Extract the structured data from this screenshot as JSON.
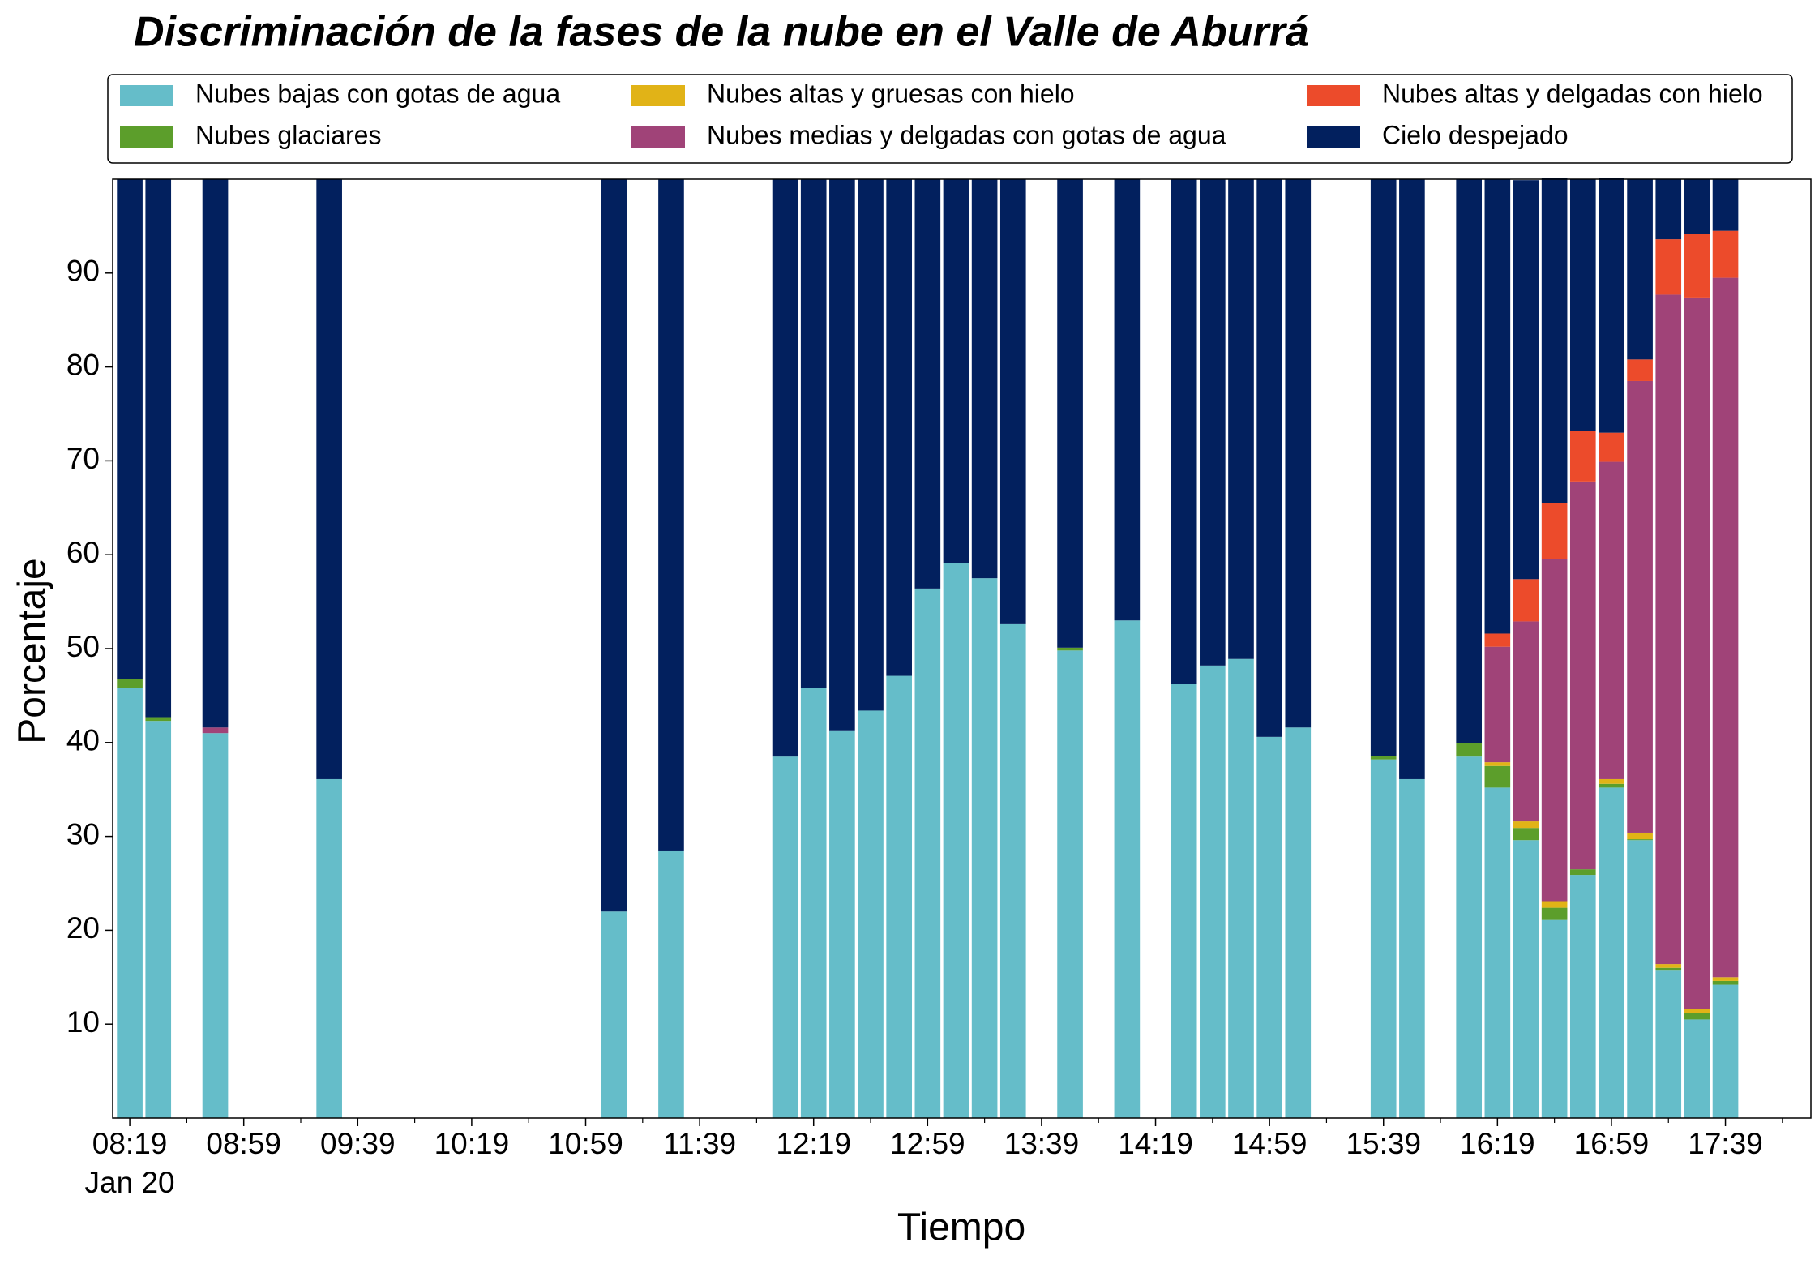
{
  "chart_data": {
    "type": "stacked_bar",
    "title": "Discriminación de la fases de la nube en el Valle de Aburrá",
    "xlabel": "Tiempo",
    "ylabel": "Porcentaje",
    "x": [
      "08:19",
      "08:29",
      "08:49",
      "09:29",
      "11:09",
      "11:29",
      "12:09",
      "12:19",
      "12:29",
      "12:39",
      "12:49",
      "12:59",
      "13:09",
      "13:19",
      "13:29",
      "13:49",
      "14:09",
      "14:29",
      "14:39",
      "14:49",
      "14:59",
      "15:09",
      "15:39",
      "15:49",
      "16:09",
      "16:19",
      "16:29",
      "16:39",
      "16:49",
      "16:59",
      "17:09",
      "17:19",
      "17:29",
      "17:39"
    ],
    "series": [
      {
        "name": "Nubes bajas con gotas de agua",
        "color": "#65bdc9",
        "values": [
          45.8,
          42.3,
          41.0,
          36.1,
          22.0,
          28.5,
          38.5,
          45.8,
          41.3,
          43.4,
          47.1,
          56.4,
          59.1,
          57.5,
          52.6,
          49.8,
          53.0,
          46.2,
          48.2,
          48.9,
          40.6,
          41.6,
          38.2,
          36.1,
          38.5,
          35.2,
          29.6,
          21.1,
          25.9,
          35.2,
          29.6,
          15.7,
          10.5,
          14.2
        ]
      },
      {
        "name": "Nubes glaciares",
        "color": "#5c9e2b",
        "values": [
          1.0,
          0.4,
          0,
          0,
          0,
          0,
          0,
          0,
          0,
          0,
          0,
          0,
          0,
          0,
          0,
          0.3,
          0,
          0,
          0,
          0,
          0,
          0,
          0.4,
          0,
          1.4,
          2.3,
          1.3,
          1.3,
          0.6,
          0.4,
          0.1,
          0.3,
          0.7,
          0.4
        ]
      },
      {
        "name": "Nubes altas y gruesas con hielo",
        "color": "#e1b317",
        "values": [
          0,
          0,
          0,
          0,
          0,
          0,
          0,
          0,
          0,
          0,
          0,
          0,
          0,
          0,
          0,
          0,
          0,
          0,
          0,
          0,
          0,
          0,
          0,
          0,
          0,
          0.4,
          0.7,
          0.7,
          0,
          0.5,
          0.7,
          0.4,
          0.4,
          0.4
        ]
      },
      {
        "name": "Nubes medias y delgadas con gotas de agua",
        "color": "#a04378",
        "values": [
          0,
          0,
          0.6,
          0,
          0,
          0,
          0,
          0,
          0,
          0,
          0,
          0,
          0,
          0,
          0,
          0,
          0,
          0,
          0,
          0,
          0,
          0,
          0,
          0,
          0,
          12.3,
          21.3,
          36.4,
          41.3,
          33.8,
          48.1,
          71.3,
          75.8,
          74.5
        ]
      },
      {
        "name": "Nubes altas y delgadas con hielo",
        "color": "#ec4b2b",
        "values": [
          0,
          0,
          0,
          0,
          0,
          0,
          0,
          0,
          0,
          0,
          0,
          0,
          0,
          0,
          0,
          0,
          0,
          0,
          0,
          0,
          0,
          0,
          0,
          0,
          0,
          1.4,
          4.5,
          6.0,
          5.4,
          3.1,
          2.3,
          5.9,
          6.8,
          5.0
        ]
      },
      {
        "name": "Cielo despejado",
        "color": "#02205e",
        "values": [
          53.2,
          57.3,
          58.4,
          63.9,
          78.0,
          71.5,
          61.5,
          54.2,
          58.7,
          56.6,
          52.9,
          43.6,
          40.9,
          42.5,
          47.4,
          49.9,
          47.0,
          53.8,
          51.8,
          51.1,
          59.4,
          58.4,
          61.4,
          63.9,
          60.1,
          48.4,
          42.5,
          34.6,
          26.8,
          27.1,
          19.2,
          6.4,
          5.8,
          5.5
        ]
      }
    ],
    "xlim": [
      "08:13",
      "18:09"
    ],
    "xticks": [
      "08:19",
      "08:59",
      "09:39",
      "10:19",
      "10:59",
      "11:39",
      "12:19",
      "12:59",
      "13:39",
      "14:19",
      "14:59",
      "15:39",
      "16:19",
      "16:59",
      "17:39"
    ],
    "xminorticks": [
      "08:39",
      "09:19",
      "09:59",
      "10:39",
      "11:19",
      "11:59",
      "12:39",
      "13:19",
      "13:59",
      "14:39",
      "15:19",
      "15:59",
      "16:39",
      "17:19",
      "17:59"
    ],
    "xtick_sublabel": "Jan 20",
    "bar_minutes": 9,
    "ylim": [
      0,
      100
    ],
    "yticks": [
      10,
      20,
      30,
      40,
      50,
      60,
      70,
      80,
      90
    ],
    "legend": "top",
    "legend_columns": 3
  }
}
